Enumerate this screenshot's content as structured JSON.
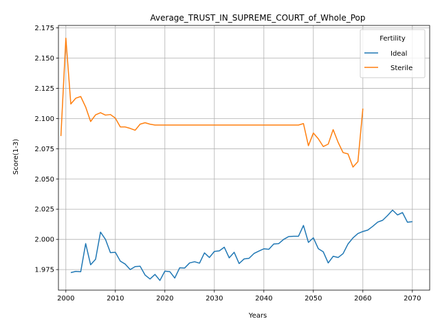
{
  "chart_data": {
    "type": "line",
    "title": "Average_TRUST_IN_SUPREME_COURT_of_Whole_Pop",
    "xlabel": "Years",
    "ylabel": "Score(1-3)",
    "xlim": [
      1998.5,
      2073.5
    ],
    "ylim": [
      1.958,
      2.177
    ],
    "xticks": [
      2000,
      2010,
      2020,
      2030,
      2040,
      2050,
      2060,
      2070
    ],
    "yticks": [
      1.975,
      2.0,
      2.025,
      2.05,
      2.075,
      2.1,
      2.125,
      2.15,
      2.175
    ],
    "ytick_labels": [
      "1.975",
      "2.000",
      "2.025",
      "2.050",
      "2.075",
      "2.100",
      "2.125",
      "2.150",
      "2.175"
    ],
    "grid": true,
    "legend": {
      "title": "Fertility",
      "placement": "top-right"
    },
    "series": [
      {
        "name": "Ideal",
        "color": "#1f77b4",
        "x": [
          2001,
          2002,
          2003,
          2004,
          2005,
          2006,
          2007,
          2008,
          2009,
          2010,
          2011,
          2012,
          2013,
          2014,
          2015,
          2016,
          2017,
          2018,
          2019,
          2020,
          2021,
          2022,
          2023,
          2024,
          2025,
          2026,
          2027,
          2028,
          2029,
          2030,
          2031,
          2032,
          2033,
          2034,
          2035,
          2036,
          2037,
          2038,
          2039,
          2040,
          2041,
          2042,
          2043,
          2044,
          2045,
          2046,
          2047,
          2048,
          2049,
          2050,
          2051,
          2052,
          2053,
          2054,
          2055,
          2056,
          2057,
          2058,
          2059,
          2060,
          2061,
          2062,
          2063,
          2064,
          2065,
          2066,
          2067,
          2068,
          2069,
          2070
        ],
        "values": [
          1.9725,
          1.9735,
          1.9732,
          1.9965,
          1.979,
          1.9835,
          2.006,
          2.0,
          1.989,
          1.9893,
          1.982,
          1.9795,
          1.975,
          1.9775,
          1.9778,
          1.9705,
          1.9672,
          1.971,
          1.966,
          1.9737,
          1.9733,
          1.968,
          1.9765,
          1.9763,
          1.9805,
          1.9815,
          1.9803,
          1.9888,
          1.985,
          1.99,
          1.9905,
          1.9935,
          1.9847,
          1.9893,
          1.98,
          1.9838,
          1.9843,
          1.9883,
          1.9903,
          1.9922,
          1.9918,
          1.9962,
          1.9965,
          2.0,
          2.0023,
          2.0026,
          2.0026,
          2.0115,
          1.9975,
          2.0013,
          1.9923,
          1.9897,
          1.9805,
          1.986,
          1.985,
          1.9882,
          1.9962,
          2.0012,
          2.0048,
          2.0065,
          2.0077,
          2.0108,
          2.0143,
          2.0158,
          2.0198,
          2.0242,
          2.0202,
          2.0222,
          2.0142,
          2.0147
        ]
      },
      {
        "name": "Sterile",
        "color": "#ff7f0e",
        "x": [
          1999,
          2000,
          2001,
          2002,
          2003,
          2004,
          2005,
          2006,
          2007,
          2008,
          2009,
          2010,
          2011,
          2012,
          2013,
          2014,
          2015,
          2016,
          2017,
          2018,
          2019,
          2020,
          2021,
          2022,
          2023,
          2024,
          2025,
          2026,
          2027,
          2028,
          2029,
          2030,
          2031,
          2032,
          2033,
          2034,
          2035,
          2036,
          2037,
          2038,
          2039,
          2040,
          2041,
          2042,
          2043,
          2044,
          2045,
          2046,
          2047,
          2048,
          2049,
          2050,
          2051,
          2052,
          2053,
          2054,
          2055,
          2056,
          2057,
          2058,
          2059,
          2060
        ],
        "values": [
          2.0855,
          2.1665,
          2.112,
          2.1168,
          2.1182,
          2.1095,
          2.0975,
          2.103,
          2.1048,
          2.1028,
          2.1033,
          2.1003,
          2.093,
          2.093,
          2.0918,
          2.0903,
          2.0953,
          2.0965,
          2.0953,
          2.0946,
          2.0946,
          2.0946,
          2.0946,
          2.0946,
          2.0946,
          2.0946,
          2.0946,
          2.0946,
          2.0946,
          2.0946,
          2.0946,
          2.0946,
          2.0946,
          2.0946,
          2.0946,
          2.0946,
          2.0946,
          2.0946,
          2.0946,
          2.0946,
          2.0946,
          2.0946,
          2.0946,
          2.0946,
          2.0946,
          2.0946,
          2.0946,
          2.0946,
          2.0946,
          2.0958,
          2.0775,
          2.088,
          2.0832,
          2.0768,
          2.0788,
          2.0908,
          2.0803,
          2.0718,
          2.0707,
          2.0598,
          2.0643,
          2.1082
        ]
      }
    ]
  }
}
